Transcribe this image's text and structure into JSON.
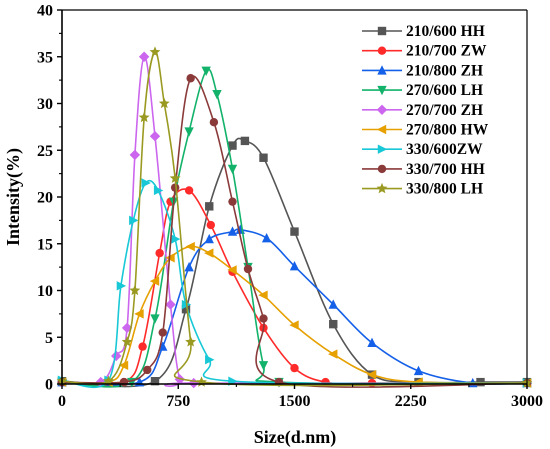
{
  "chart_data": {
    "type": "line",
    "xlabel": "Size(d.nm)",
    "ylabel": "Intensity(%)",
    "xlim": [
      0,
      3000
    ],
    "ylim": [
      0,
      40
    ],
    "xticks": [
      0,
      750,
      1500,
      2250,
      3000
    ],
    "xtick_labels": [
      "0",
      "750",
      "1500",
      "2250",
      "3000"
    ],
    "yticks": [
      0,
      5,
      10,
      15,
      20,
      25,
      30,
      35,
      40
    ],
    "ytick_labels": [
      "0",
      "5",
      "10",
      "15",
      "20",
      "25",
      "30",
      "35",
      "40"
    ],
    "grid": false,
    "legend_position": "top-right",
    "series": [
      {
        "name": "210/600 HH",
        "color": "#555555",
        "marker": "square",
        "points": [
          [
            0,
            0.3
          ],
          [
            600,
            0.3
          ],
          [
            800,
            8
          ],
          [
            950,
            19
          ],
          [
            1100,
            25.5
          ],
          [
            1180,
            26
          ],
          [
            1300,
            24.2
          ],
          [
            1500,
            16.3
          ],
          [
            1750,
            6.4
          ],
          [
            2000,
            1.0
          ],
          [
            2300,
            0.2
          ],
          [
            2700,
            0.2
          ],
          [
            3000,
            0.2
          ]
        ]
      },
      {
        "name": "210/700 ZW",
        "color": "#ff2a2a",
        "marker": "circle",
        "points": [
          [
            0,
            0.2
          ],
          [
            400,
            0.2
          ],
          [
            520,
            4
          ],
          [
            630,
            14
          ],
          [
            700,
            19.5
          ],
          [
            820,
            20.7
          ],
          [
            960,
            17
          ],
          [
            1100,
            12
          ],
          [
            1300,
            6
          ],
          [
            1500,
            1.7
          ],
          [
            1700,
            0.2
          ],
          [
            2000,
            0.1
          ],
          [
            3000,
            0.1
          ]
        ]
      },
      {
        "name": "210/800 ZH",
        "color": "#1560e8",
        "marker": "triangle-up",
        "points": [
          [
            0,
            0.2
          ],
          [
            500,
            0.2
          ],
          [
            650,
            4
          ],
          [
            820,
            12.5
          ],
          [
            950,
            15.5
          ],
          [
            1100,
            16.3
          ],
          [
            1150,
            16.5
          ],
          [
            1320,
            15.6
          ],
          [
            1500,
            12.6
          ],
          [
            1750,
            8.5
          ],
          [
            2000,
            4.4
          ],
          [
            2300,
            1.4
          ],
          [
            2650,
            0.1
          ],
          [
            3000,
            0.1
          ]
        ]
      },
      {
        "name": "270/600 LH",
        "color": "#12b26a",
        "marker": "triangle-down",
        "points": [
          [
            0,
            0.2
          ],
          [
            450,
            0.2
          ],
          [
            600,
            7
          ],
          [
            720,
            19.5
          ],
          [
            820,
            27
          ],
          [
            930,
            33.5
          ],
          [
            1000,
            31
          ],
          [
            1100,
            23
          ],
          [
            1200,
            12.5
          ],
          [
            1300,
            2
          ],
          [
            1400,
            0.2
          ],
          [
            3000,
            0.1
          ]
        ]
      },
      {
        "name": "270/700 ZH",
        "color": "#cc66ee",
        "marker": "diamond",
        "points": [
          [
            0,
            0.2
          ],
          [
            250,
            0.2
          ],
          [
            350,
            3
          ],
          [
            420,
            6
          ],
          [
            470,
            24.5
          ],
          [
            530,
            35
          ],
          [
            600,
            26.5
          ],
          [
            700,
            8.5
          ],
          [
            760,
            0.5
          ],
          [
            850,
            0.1
          ],
          [
            3000,
            0.1
          ]
        ]
      },
      {
        "name": "270/800 HW",
        "color": "#e6a000",
        "marker": "triangle-left",
        "points": [
          [
            0,
            0.2
          ],
          [
            300,
            0.2
          ],
          [
            400,
            2
          ],
          [
            500,
            7.5
          ],
          [
            600,
            11
          ],
          [
            700,
            13.5
          ],
          [
            830,
            14.7
          ],
          [
            950,
            14
          ],
          [
            1100,
            12.2
          ],
          [
            1300,
            9.5
          ],
          [
            1500,
            6.3
          ],
          [
            1750,
            3.2
          ],
          [
            2000,
            1.0
          ],
          [
            2300,
            0.2
          ],
          [
            3000,
            0.1
          ]
        ]
      },
      {
        "name": "330/600ZW",
        "color": "#18c8d6",
        "marker": "triangle-right",
        "points": [
          [
            0,
            0.4
          ],
          [
            300,
            0.4
          ],
          [
            380,
            10.5
          ],
          [
            460,
            17.5
          ],
          [
            540,
            21.5
          ],
          [
            620,
            20.7
          ],
          [
            730,
            15.5
          ],
          [
            800,
            8.5
          ],
          [
            950,
            2.6
          ],
          [
            1100,
            0.3
          ],
          [
            3000,
            0.1
          ]
        ]
      },
      {
        "name": "330/700 HH",
        "color": "#8b3a3a",
        "marker": "circle",
        "points": [
          [
            0,
            0.2
          ],
          [
            400,
            0.2
          ],
          [
            550,
            1.5
          ],
          [
            650,
            5.5
          ],
          [
            730,
            21
          ],
          [
            830,
            32.7
          ],
          [
            980,
            28
          ],
          [
            1100,
            19.5
          ],
          [
            1200,
            12.3
          ],
          [
            1300,
            7
          ],
          [
            1400,
            0.2
          ],
          [
            3000,
            0.1
          ]
        ]
      },
      {
        "name": "330/800 LH",
        "color": "#9a9a22",
        "marker": "star",
        "points": [
          [
            0,
            0.3
          ],
          [
            300,
            0.3
          ],
          [
            420,
            4.5
          ],
          [
            470,
            10
          ],
          [
            530,
            28.5
          ],
          [
            600,
            35.5
          ],
          [
            660,
            30
          ],
          [
            730,
            22
          ],
          [
            830,
            4.5
          ],
          [
            900,
            0.2
          ],
          [
            3000,
            0.1
          ]
        ]
      }
    ]
  }
}
